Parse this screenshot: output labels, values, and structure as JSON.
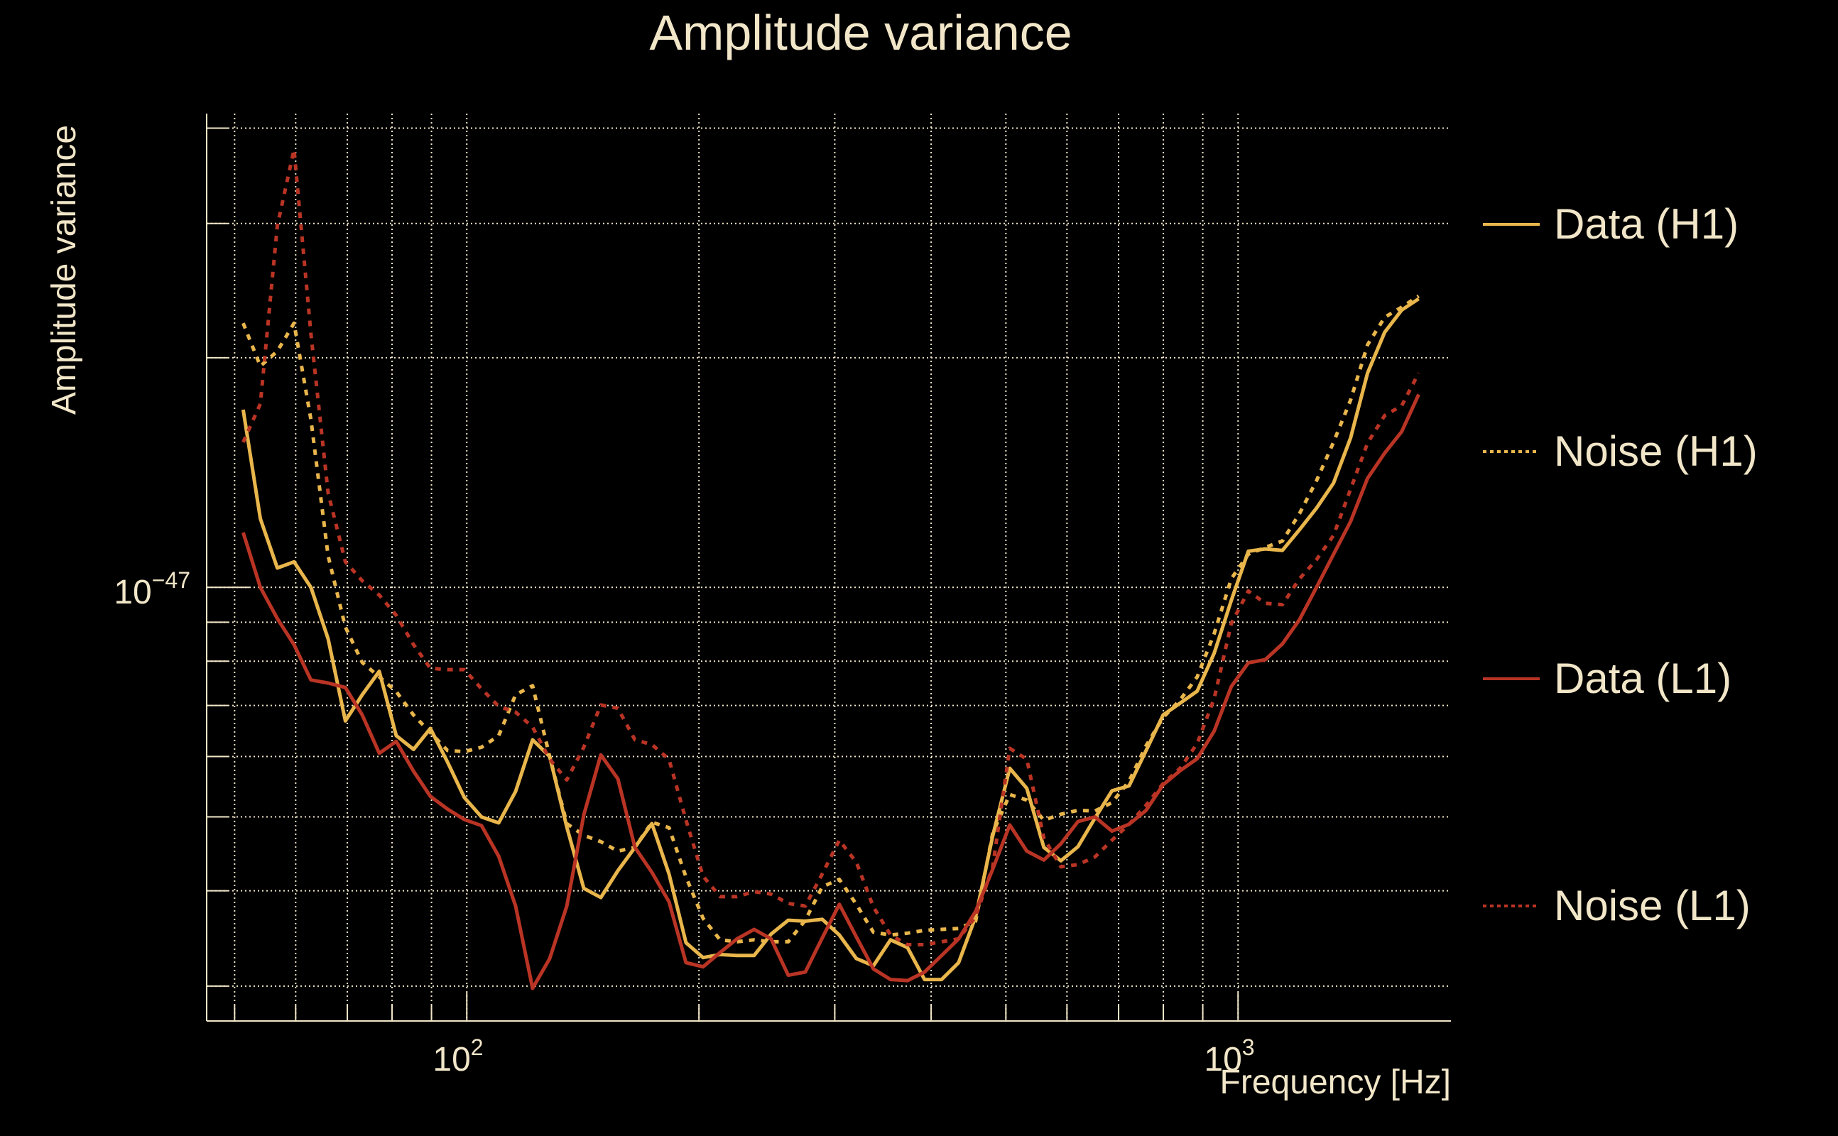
{
  "chart_data": {
    "type": "line",
    "title": "Amplitude variance",
    "xlabel": "Frequency [Hz]",
    "ylabel": "Amplitude variance",
    "xscale": "log",
    "yscale": "log",
    "xlim": [
      46,
      1888
    ],
    "ylim": [
      2.7e-48,
      4.18e-47
    ],
    "grid": true,
    "legend_position": "right",
    "x_tick_labels": [
      {
        "value": 100,
        "base": "10",
        "exp": "2"
      },
      {
        "value": 1000,
        "base": "10",
        "exp": "3"
      }
    ],
    "y_tick_labels": [
      {
        "value": 1e-47,
        "base": "10",
        "exp": "−47"
      }
    ],
    "x_minor_grid": [
      50,
      60,
      70,
      80,
      90,
      100,
      200,
      300,
      400,
      500,
      600,
      700,
      800,
      900,
      1000
    ],
    "y_minor_grid": [
      3e-48,
      4e-48,
      5e-48,
      6e-48,
      7e-48,
      8e-48,
      9e-48,
      1e-47,
      2e-47,
      3e-47,
      4e-47
    ],
    "x": [
      51.3,
      54.0,
      56.8,
      59.7,
      62.8,
      66.1,
      69.6,
      73.2,
      77.0,
      81.0,
      85.3,
      89.7,
      94.4,
      99.3,
      104.5,
      110.0,
      115.7,
      121.7,
      128.1,
      134.8,
      141.8,
      149.2,
      157.0,
      165.2,
      173.8,
      182.9,
      192.4,
      202.5,
      213.0,
      224.1,
      235.8,
      248.1,
      261.1,
      274.7,
      289.0,
      304.1,
      320.0,
      336.7,
      354.3,
      372.7,
      392.2,
      412.7,
      434.2,
      456.9,
      480.7,
      505.8,
      532.2,
      560.0,
      589.2,
      620.0,
      652.3,
      686.3,
      722.2,
      759.9,
      799.5,
      841.2,
      885.1,
      931.3,
      979.9,
      1031.1,
      1084.9,
      1141.5,
      1201.1,
      1263.8,
      1329.7,
      1399.1,
      1472.1,
      1549.0,
      1629.8,
      1714.9
    ],
    "series": [
      {
        "name": "Data (H1)",
        "color": "#e9b64c",
        "style": "solid",
        "values": [
          1.71e-47,
          1.23e-47,
          1.06e-47,
          1.08e-47,
          1e-47,
          8.56e-48,
          6.68e-48,
          7.23e-48,
          7.76e-48,
          6.39e-48,
          6.13e-48,
          6.53e-48,
          5.9e-48,
          5.3e-48,
          5e-48,
          4.91e-48,
          5.4e-48,
          6.31e-48,
          6e-48,
          4.85e-48,
          4.03e-48,
          3.92e-48,
          4.25e-48,
          4.56e-48,
          4.9e-48,
          4.21e-48,
          3.42e-48,
          3.27e-48,
          3.3e-48,
          3.29e-48,
          3.29e-48,
          3.51e-48,
          3.66e-48,
          3.65e-48,
          3.67e-48,
          3.5e-48,
          3.26e-48,
          3.19e-48,
          3.45e-48,
          3.37e-48,
          3.06e-48,
          3.06e-48,
          3.22e-48,
          3.7e-48,
          4.72e-48,
          5.79e-48,
          5.45e-48,
          4.56e-48,
          4.38e-48,
          4.57e-48,
          4.98e-48,
          5.41e-48,
          5.49e-48,
          6.11e-48,
          6.8e-48,
          7.05e-48,
          7.31e-48,
          8.2e-48,
          9.61e-48,
          1.115e-47,
          1.123e-47,
          1.118e-47,
          1.19e-47,
          1.27e-47,
          1.37e-47,
          1.57e-47,
          1.91e-47,
          2.16e-47,
          2.31e-47,
          2.39e-47
        ]
      },
      {
        "name": "Noise (H1)",
        "color": "#e9b64c",
        "style": "dotted",
        "values": [
          2.22e-47,
          1.95e-47,
          2.04e-47,
          2.22e-47,
          1.66e-47,
          1.1e-47,
          8.87e-48,
          7.97e-48,
          7.63e-48,
          7.3e-48,
          6.8e-48,
          6.45e-48,
          6.11e-48,
          6.09e-48,
          6.17e-48,
          6.39e-48,
          7.23e-48,
          7.43e-48,
          6e-48,
          4.9e-48,
          4.73e-48,
          4.64e-48,
          4.51e-48,
          4.56e-48,
          4.92e-48,
          4.84e-48,
          4.17e-48,
          3.68e-48,
          3.45e-48,
          3.43e-48,
          3.45e-48,
          3.43e-48,
          3.43e-48,
          3.66e-48,
          4.05e-48,
          4.14e-48,
          3.84e-48,
          3.53e-48,
          3.5e-48,
          3.52e-48,
          3.55e-48,
          3.56e-48,
          3.57e-48,
          3.65e-48,
          4.76e-48,
          5.35e-48,
          5.26e-48,
          4.95e-48,
          5.04e-48,
          5.1e-48,
          5.09e-48,
          5.22e-48,
          5.57e-48,
          6.2e-48,
          6.75e-48,
          7.12e-48,
          7.63e-48,
          8.7e-48,
          1.026e-47,
          1.105e-47,
          1.128e-47,
          1.15e-47,
          1.249e-47,
          1.38e-47,
          1.55e-47,
          1.76e-47,
          2.08e-47,
          2.26e-47,
          2.33e-47,
          2.41e-47
        ]
      },
      {
        "name": "Data (L1)",
        "color": "#b93424",
        "style": "solid",
        "values": [
          1.18e-47,
          1e-47,
          9.1e-48,
          8.41e-48,
          7.56e-48,
          7.49e-48,
          7.39e-48,
          6.8e-48,
          6.06e-48,
          6.28e-48,
          5.74e-48,
          5.32e-48,
          5.12e-48,
          4.96e-48,
          4.87e-48,
          4.44e-48,
          3.82e-48,
          2.98e-48,
          3.26e-48,
          3.82e-48,
          5.03e-48,
          6.03e-48,
          5.61e-48,
          4.56e-48,
          4.23e-48,
          3.87e-48,
          3.22e-48,
          3.18e-48,
          3.32e-48,
          3.46e-48,
          3.56e-48,
          3.46e-48,
          3.1e-48,
          3.13e-48,
          3.47e-48,
          3.84e-48,
          3.48e-48,
          3.16e-48,
          3.06e-48,
          3.05e-48,
          3.13e-48,
          3.29e-48,
          3.46e-48,
          3.76e-48,
          4.27e-48,
          4.88e-48,
          4.51e-48,
          4.39e-48,
          4.61e-48,
          4.93e-48,
          5e-48,
          4.79e-48,
          4.89e-48,
          5.1e-48,
          5.51e-48,
          5.75e-48,
          5.96e-48,
          6.48e-48,
          7.41e-48,
          7.96e-48,
          8.04e-48,
          8.43e-48,
          9.07e-48,
          1e-47,
          1.105e-47,
          1.22e-47,
          1.39e-47,
          1.5e-47,
          1.6e-47,
          1.79e-47
        ]
      },
      {
        "name": "Noise (L1)",
        "color": "#b93424",
        "style": "dotted",
        "values": [
          1.55e-47,
          1.74e-47,
          2.98e-47,
          3.75e-47,
          2.15e-47,
          1.33e-47,
          1.08e-47,
          1.02e-47,
          9.77e-48,
          9.19e-48,
          8.41e-48,
          7.83e-48,
          7.8e-48,
          7.8e-48,
          7.36e-48,
          6.98e-48,
          6.86e-48,
          6.56e-48,
          5.95e-48,
          5.59e-48,
          6.17e-48,
          7.01e-48,
          6.94e-48,
          6.31e-48,
          6.22e-48,
          5.95e-48,
          4.95e-48,
          4.18e-48,
          3.93e-48,
          3.93e-48,
          3.99e-48,
          3.96e-48,
          3.85e-48,
          3.82e-48,
          4.21e-48,
          4.66e-48,
          4.36e-48,
          3.81e-48,
          3.5e-48,
          3.4e-48,
          3.4e-48,
          3.43e-48,
          3.46e-48,
          3.7e-48,
          4.3e-48,
          6.15e-48,
          5.95e-48,
          4.69e-48,
          4.3e-48,
          4.33e-48,
          4.43e-48,
          4.66e-48,
          4.89e-48,
          5.18e-48,
          5.53e-48,
          5.79e-48,
          6.24e-48,
          7.15e-48,
          8.96e-48,
          9.89e-48,
          9.53e-48,
          9.49e-48,
          1.026e-47,
          1.087e-47,
          1.17e-47,
          1.345e-47,
          1.546e-47,
          1.68e-47,
          1.73e-47,
          1.91e-47
        ]
      }
    ]
  }
}
